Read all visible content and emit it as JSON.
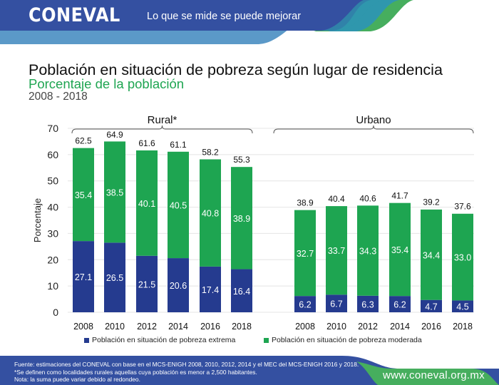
{
  "header": {
    "logo": "CONEVAL",
    "tagline": "Lo que se mide se puede mejorar"
  },
  "colors": {
    "extreme": "#253b8f",
    "moderate": "#1ea551",
    "header_blue": "#3450a1",
    "header_light": "#5b99c8",
    "header_teal": "#2f97ad",
    "brand_green": "#46ae5e"
  },
  "chart_data": {
    "type": "bar",
    "stacked": true,
    "title": "Población en situación de pobreza según lugar de residencia",
    "subtitle": "Porcentaje de la población",
    "period": "2008 - 2018",
    "ylabel": "Porcentaje",
    "ylim": [
      0,
      70
    ],
    "yticks": [
      0,
      10,
      20,
      30,
      40,
      50,
      60,
      70
    ],
    "grid": true,
    "legend_position": "bottom",
    "groups": [
      {
        "name": "Rural*",
        "categories": [
          "2008",
          "2010",
          "2012",
          "2014",
          "2016",
          "2018"
        ],
        "totals": [
          62.5,
          64.9,
          61.6,
          61.1,
          58.2,
          55.3
        ],
        "series": [
          {
            "name": "Población en situación de pobreza extrema",
            "values": [
              27.1,
              26.5,
              21.5,
              20.6,
              17.4,
              16.4
            ]
          },
          {
            "name": "Población en situación de pobreza moderada",
            "values": [
              35.4,
              38.5,
              40.1,
              40.5,
              40.8,
              38.9
            ]
          }
        ]
      },
      {
        "name": "Urbano",
        "categories": [
          "2008",
          "2010",
          "2012",
          "2014",
          "2016",
          "2018"
        ],
        "totals": [
          38.9,
          40.4,
          40.6,
          41.7,
          39.2,
          37.6
        ],
        "series": [
          {
            "name": "Población en situación de pobreza extrema",
            "values": [
              6.2,
              6.7,
              6.3,
              6.2,
              4.7,
              4.5
            ]
          },
          {
            "name": "Población en situación de pobreza moderada",
            "values": [
              32.7,
              33.7,
              34.3,
              35.4,
              34.4,
              33.0
            ]
          }
        ]
      }
    ]
  },
  "legend": {
    "extreme": "Población en situación de pobreza extrema",
    "moderate": "Población en situación de pobreza moderada"
  },
  "footer": {
    "source": "Fuente: estimaciones del CONEVAL con base en el MCS-ENIGH 2008, 2010, 2012, 2014 y el MEC del MCS-ENIGH 2016 y 2018.",
    "note1": "*Se definen como localidades rurales aquellas cuya población es menor a 2,500 habitantes.",
    "note2": "Nota: la suma puede variar debido al redondeo.",
    "url": "www.coneval.org.mx"
  }
}
